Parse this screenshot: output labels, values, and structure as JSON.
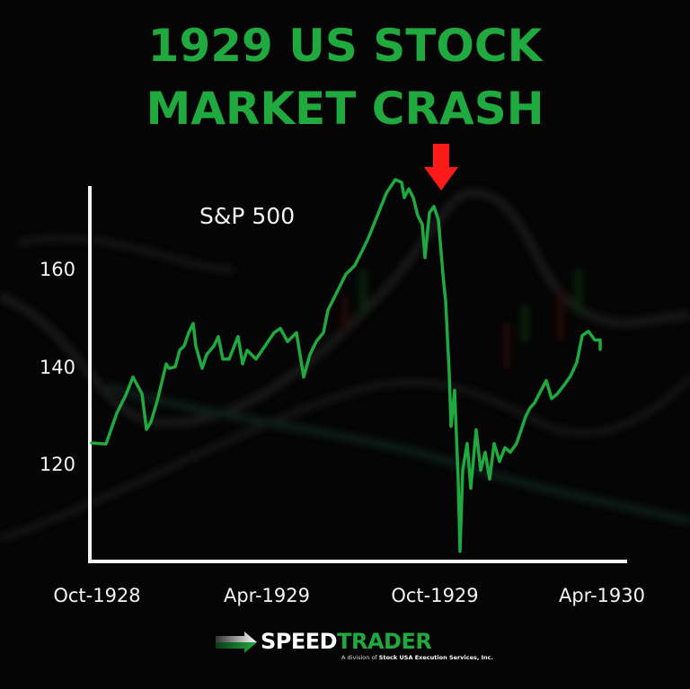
{
  "title": {
    "line1": "1929 US STOCK",
    "line2": "MARKET CRASH",
    "color": "#1fa93f"
  },
  "chart_data": {
    "type": "line",
    "title": "1929 US STOCK MARKET CRASH",
    "series_label": "S&P 500",
    "xlabel": "",
    "ylabel": "",
    "x_tick_labels": [
      "Oct-1928",
      "Apr-1929",
      "Oct-1929",
      "Apr-1930"
    ],
    "y_tick_labels": [
      "120",
      "140",
      "160"
    ],
    "y_ticks": [
      120,
      140,
      160
    ],
    "ylim": [
      99,
      180
    ],
    "grid": false,
    "legend": "none",
    "line_color": "#1fa93f",
    "annotations": [
      {
        "type": "arrow",
        "color": "#ff1a1a",
        "direction": "down",
        "position": "Oct-1929 peak"
      }
    ],
    "series": [
      {
        "name": "S&P 500",
        "x_approx": [
          "Oct-1928",
          "",
          "",
          "",
          "",
          "",
          "",
          "",
          "",
          "",
          "",
          "",
          "",
          "",
          "",
          "",
          "",
          "",
          "",
          "",
          "",
          "",
          "",
          "",
          "",
          "Apr-1929",
          "",
          "",
          "",
          "",
          "",
          "",
          "",
          "",
          "",
          "",
          "",
          "",
          "",
          "",
          "",
          "",
          "",
          "",
          "",
          "",
          "",
          "",
          "",
          "",
          "",
          "Oct-1929",
          "",
          "",
          "",
          "",
          "",
          "",
          "",
          "",
          "",
          "",
          "",
          "",
          "",
          "",
          "",
          "",
          "",
          "",
          "",
          "",
          "",
          "",
          "",
          "",
          "",
          "",
          "",
          "",
          "",
          "",
          "Apr-1930",
          ""
        ],
        "values": [
          124.4,
          124.2,
          130.5,
          134.2,
          137.9,
          134.5,
          127.2,
          128.7,
          133.0,
          140.6,
          139.7,
          140.0,
          143.4,
          144.3,
          147.0,
          148.9,
          144.2,
          139.7,
          142.5,
          144.3,
          146.2,
          141.6,
          141.6,
          146.2,
          140.6,
          143.4,
          141.6,
          144.3,
          147.0,
          147.9,
          145.2,
          147.0,
          137.9,
          142.5,
          145.2,
          147.0,
          151.6,
          155.3,
          159.0,
          160.8,
          164.5,
          166.4,
          171.0,
          175.6,
          178.4,
          177.8,
          174.7,
          176.5,
          174.7,
          171.0,
          169.2,
          162.4,
          171.6,
          172.9,
          170.1,
          159.0,
          153.5,
          138.8,
          127.8,
          135.2,
          116.8,
          102.2,
          118.8,
          124.3,
          115.1,
          127.1,
          118.8,
          122.5,
          117.0,
          124.3,
          120.6,
          123.4,
          122.5,
          124.3,
          129.8,
          131.6,
          132.6,
          134.4,
          137.2,
          133.5,
          134.4,
          136.3,
          138.1,
          140.9,
          146.4,
          147.3,
          145.5,
          145.5,
          143.6
        ]
      }
    ]
  },
  "axis": {
    "y_labels": [
      "160",
      "140",
      "120"
    ],
    "x_labels": [
      "Oct-1928",
      "Apr-1929",
      "Oct-1929",
      "Apr-1930"
    ]
  },
  "series_label": "S&P 500",
  "logo": {
    "word1": "SPEED",
    "word2": "TRADER",
    "sub_prefix": "A division of ",
    "sub_bold": "Stock USA Execution Services, Inc."
  },
  "colors": {
    "background": "#050505",
    "accent_green": "#1fa93f",
    "arrow_red": "#ff1a1a",
    "axis_white": "#f4f4f4"
  }
}
